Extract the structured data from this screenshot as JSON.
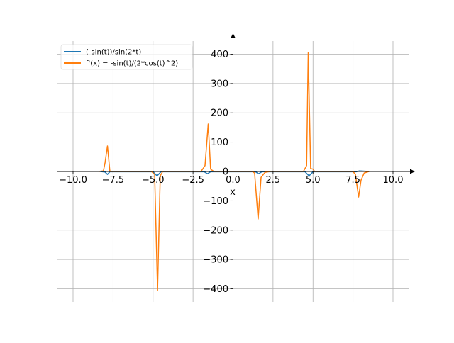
{
  "chart_data": {
    "type": "line",
    "title": "",
    "xlabel": "x",
    "ylabel": "",
    "xlim": [
      -11,
      11
    ],
    "ylim": [
      -445,
      460
    ],
    "grid": true,
    "legend_position": "top-left",
    "xticks": [
      -10,
      -7.5,
      -5,
      -2.5,
      0,
      2.5,
      5,
      7.5,
      10
    ],
    "xtick_labels": [
      "−10.0",
      "−7.5",
      "−5.0",
      "−2.5",
      "0.0",
      "2.5",
      "5.0",
      "7.5",
      "10.0"
    ],
    "yticks": [
      -400,
      -300,
      -200,
      -100,
      0,
      100,
      200,
      300,
      400
    ],
    "ytick_labels": [
      "−400",
      "−300",
      "−200",
      "−100",
      "0",
      "100",
      "200",
      "300",
      "400"
    ],
    "series": [
      {
        "name": "(-sin(t))/sin(2*t)",
        "color": "#1f77b4",
        "x": [
          -8.3,
          -8.0,
          -7.85,
          -7.7,
          -5.0,
          -4.75,
          -4.5,
          -1.8,
          -1.6,
          -1.4,
          1.4,
          1.6,
          1.8,
          4.5,
          4.75,
          5.0,
          7.7,
          7.9,
          8.5
        ],
        "y": [
          0,
          -2,
          -10,
          -1,
          -1,
          -15,
          -1,
          -1,
          -8,
          -1,
          -1,
          -8,
          -1,
          -1,
          -15,
          -1,
          -1,
          2,
          0
        ]
      },
      {
        "name": "f'(x) = -sin(t)/(2*cos(t)^2)",
        "color": "#ff7f0e",
        "x": [
          -8.4,
          -8.1,
          -8.0,
          -7.85,
          -7.7,
          -5.1,
          -4.9,
          -4.72,
          -4.55,
          -4.4,
          -2.0,
          -1.75,
          -1.55,
          -1.4,
          -1.2,
          1.2,
          1.35,
          1.57,
          1.75,
          2.0,
          2.3,
          4.4,
          4.6,
          4.7,
          4.85,
          5.0,
          5.1,
          7.5,
          7.65,
          7.85,
          8.0,
          8.2,
          8.5
        ],
        "y": [
          0,
          2,
          30,
          87,
          0,
          0,
          -10,
          -405,
          -15,
          0,
          0,
          20,
          162,
          8,
          0,
          0,
          -5,
          -162,
          -20,
          -3,
          0,
          0,
          20,
          405,
          10,
          8,
          0,
          0,
          -10,
          -87,
          -30,
          -5,
          0
        ]
      }
    ]
  }
}
